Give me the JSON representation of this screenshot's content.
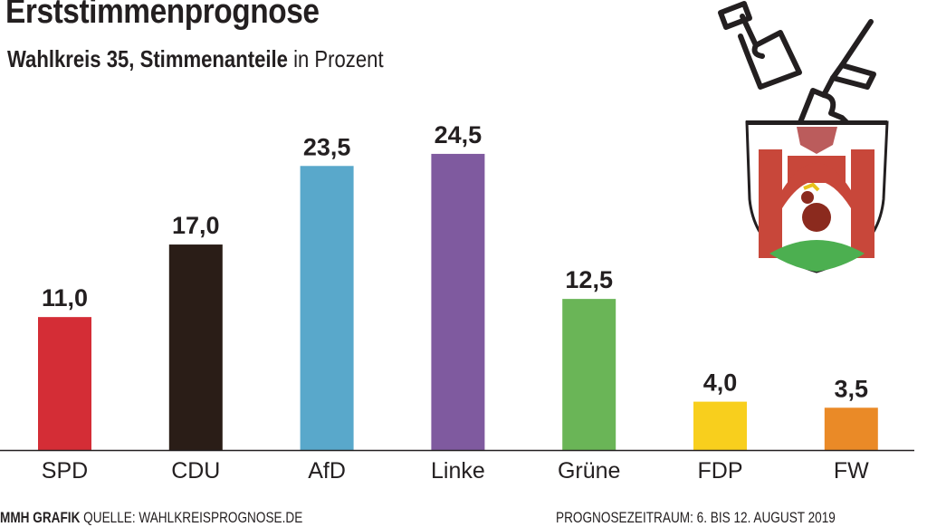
{
  "chart_data": {
    "type": "bar",
    "title": "Erststimmenprognose",
    "subtitle_bold": "Wahlkreis 35, Stimmenanteile",
    "subtitle_rest": "in Prozent",
    "categories": [
      "SPD",
      "CDU",
      "AfD",
      "Linke",
      "Grüne",
      "FDP",
      "FW"
    ],
    "values": [
      11.0,
      17.0,
      23.5,
      24.5,
      12.5,
      4.0,
      3.5
    ],
    "value_labels": [
      "11,0",
      "17,0",
      "23,5",
      "24,5",
      "12,5",
      "4,0",
      "3,5"
    ],
    "colors": [
      "#d42d36",
      "#2a1d17",
      "#59a8cb",
      "#7f5a9f",
      "#6ab557",
      "#f8cf1d",
      "#ea8a27"
    ],
    "ylim": [
      0,
      25
    ],
    "xlabel": "",
    "ylabel": "",
    "grid": false
  },
  "footer": {
    "brand": "MMH GRAFIK",
    "source": "QUELLE: WAHLKREISPROGNOSE.DE",
    "period": "PROGNOSEZEITRAUM: 6. BIS 12. AUGUST 2019"
  }
}
